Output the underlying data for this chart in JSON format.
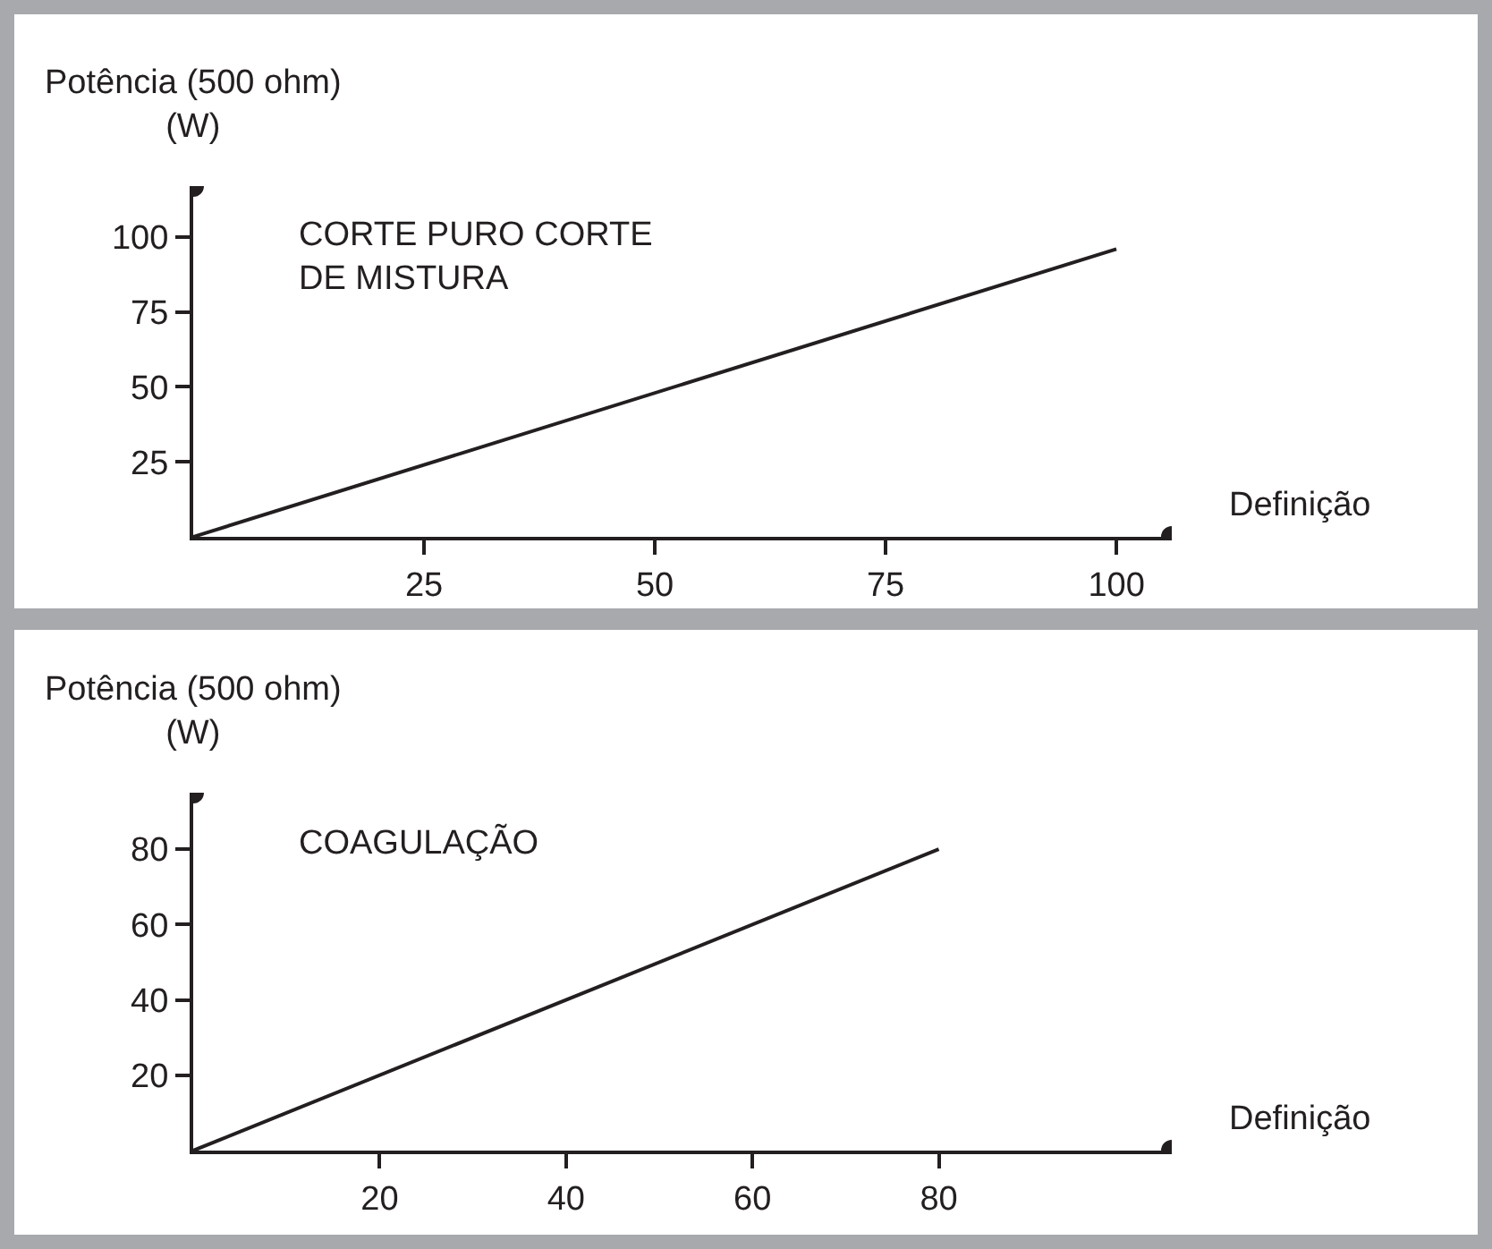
{
  "chart_data": [
    {
      "type": "line",
      "title": "CORTE PURO CORTE\nDE MISTURA",
      "xlabel": "Definição",
      "ylabel": "Potência (500 ohm)\n(W)",
      "x": [
        0,
        100
      ],
      "series": [
        {
          "color": "#231f20",
          "values": [
            0,
            96
          ]
        }
      ],
      "xlim": [
        0,
        106
      ],
      "ylim": [
        0,
        117
      ],
      "xticks": [
        25,
        50,
        75,
        100
      ],
      "yticks": [
        25,
        50,
        75,
        100
      ],
      "marker": "none",
      "line_style": "solid"
    },
    {
      "type": "line",
      "title": "COAGULAÇÃO",
      "xlabel": "Definição",
      "ylabel": "Potência (500 ohm)\n(W)",
      "x": [
        0,
        80
      ],
      "series": [
        {
          "color": "#231f20",
          "values": [
            0,
            80
          ]
        }
      ],
      "xlim": [
        0,
        105
      ],
      "ylim": [
        0,
        95
      ],
      "xticks": [
        20,
        40,
        60,
        80
      ],
      "yticks": [
        20,
        40,
        60,
        80
      ],
      "marker": "none",
      "line_style": "solid"
    }
  ]
}
